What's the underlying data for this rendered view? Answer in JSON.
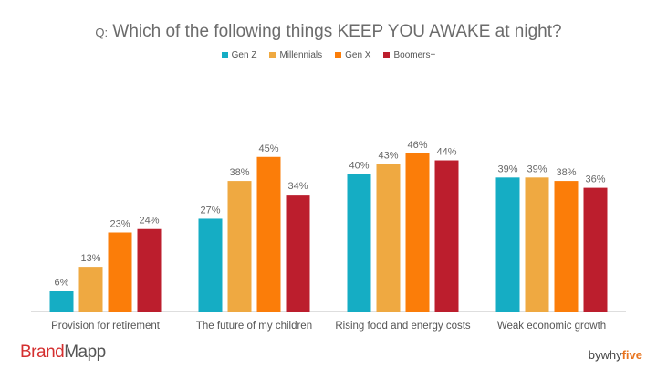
{
  "title_prefix": "Q:",
  "title_main": "Which of the following things KEEP YOU AWAKE at night?",
  "brand": {
    "part1": "Brand",
    "part2": "Mapp"
  },
  "byline": {
    "prefix": "by",
    "mid": "why",
    "accent": "five"
  },
  "chart_data": {
    "type": "bar",
    "categories": [
      "Provision for retirement",
      "The future of my children",
      "Rising food and energy costs",
      "Weak economic growth"
    ],
    "series": [
      {
        "name": "Gen Z",
        "color": "#15adc4",
        "values": [
          6,
          27,
          40,
          39
        ],
        "labels": [
          "6%",
          "27%",
          "40%",
          "39%"
        ]
      },
      {
        "name": "Millennials",
        "color": "#efa941",
        "values": [
          13,
          38,
          43,
          39
        ],
        "labels": [
          "13%",
          "38%",
          "43%",
          "39%"
        ]
      },
      {
        "name": "Gen X",
        "color": "#fb7d09",
        "values": [
          23,
          45,
          46,
          38
        ],
        "labels": [
          "23%",
          "45%",
          "46%",
          "38%"
        ]
      },
      {
        "name": "Boomers+",
        "color": "#bc1e2d",
        "values": [
          24,
          34,
          44,
          36
        ],
        "labels": [
          "24%",
          "34%",
          "44%",
          "36%"
        ]
      }
    ],
    "ylim": [
      0,
      50
    ],
    "grid": false,
    "legend": "top-center"
  }
}
